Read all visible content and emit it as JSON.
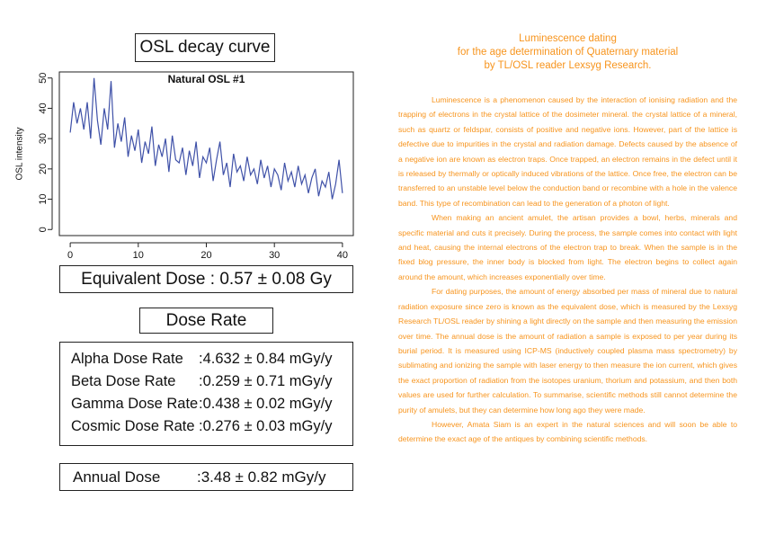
{
  "chart_box_title": "OSL decay curve",
  "chart_data": {
    "type": "line",
    "title": "Natural OSL #1",
    "y_label": "OSL intensity",
    "color": "#3f51a8",
    "x": [
      0,
      0.5,
      1,
      1.5,
      2,
      2.5,
      3,
      3.5,
      4,
      4.5,
      5,
      5.5,
      6,
      6.5,
      7,
      7.5,
      8,
      8.5,
      9,
      9.5,
      10,
      10.5,
      11,
      11.5,
      12,
      12.5,
      13,
      13.5,
      14,
      14.5,
      15,
      15.5,
      16,
      16.5,
      17,
      17.5,
      18,
      18.5,
      19,
      19.5,
      20,
      20.5,
      21,
      21.5,
      22,
      22.5,
      23,
      23.5,
      24,
      24.5,
      25,
      25.5,
      26,
      26.5,
      27,
      27.5,
      28,
      28.5,
      29,
      29.5,
      30,
      30.5,
      31,
      31.5,
      32,
      32.5,
      33,
      33.5,
      34,
      34.5,
      35,
      35.5,
      36,
      36.5,
      37,
      37.5,
      38,
      38.5,
      39,
      39.5,
      40
    ],
    "values": [
      32,
      42,
      35,
      40,
      33,
      42,
      30,
      50,
      36,
      28,
      40,
      33,
      49,
      27,
      35,
      29,
      37,
      24,
      31,
      26,
      33,
      22,
      29,
      25,
      34,
      21,
      28,
      24,
      30,
      19,
      31,
      23,
      22,
      27,
      18,
      26,
      21,
      29,
      17,
      24,
      22,
      27,
      16,
      23,
      29,
      18,
      22,
      14,
      25,
      19,
      21,
      16,
      24,
      18,
      20,
      15,
      23,
      17,
      21,
      14,
      20,
      18,
      13,
      22,
      16,
      19,
      14,
      21,
      15,
      18,
      12,
      17,
      20,
      11,
      16,
      14,
      19,
      10,
      15,
      23,
      12
    ],
    "xlim": [
      -1.6,
      41.6
    ],
    "ylim": [
      -2,
      52
    ],
    "xticks": [
      0,
      10,
      20,
      30,
      40
    ],
    "yticks": [
      0,
      10,
      20,
      30,
      40,
      50
    ]
  },
  "equivalent_dose": {
    "label": "Equivalent Dose",
    "value": ": 0.57 ±  0.08 Gy"
  },
  "dose_rate_title": "Dose Rate",
  "dose_rates": [
    {
      "label": "Alpha Dose Rate",
      "value": ":4.632 ±  0.84 mGy/y"
    },
    {
      "label": "Beta Dose Rate",
      "value": ":0.259 ±  0.71 mGy/y"
    },
    {
      "label": "Gamma Dose Rate",
      "value": ":0.438 ±  0.02 mGy/y"
    },
    {
      "label": "Cosmic Dose Rate",
      "value": ":0.276 ± 0.03  mGy/y"
    }
  ],
  "annual_dose": {
    "label": "Annual Dose",
    "value": ":3.48 ±  0.82 mGy/y"
  },
  "article": {
    "title": [
      "Luminescence dating",
      "for the age determination of Quaternary material",
      "by TL/OSL reader Lexsyg Research."
    ],
    "paragraphs": [
      "Luminescence is a phenomenon caused by the interaction of ionising radiation and the trapping of electrons in the crystal lattice of the dosimeter mineral. the crystal lattice of a mineral, such as quartz or feldspar, consists of positive and negative ions. However, part of the lattice is defective due to impurities in the crystal and radiation damage. Defects caused by the absence of a negative ion are known as electron traps. Once trapped, an electron remains in the defect until it is released by thermally or optically induced vibrations of the lattice. Once free, the electron can be transferred to an unstable level below the conduction band or recombine with a hole in the valence band. This type of recombination can lead to the generation of a photon of light.",
      "When making an ancient amulet, the artisan provides a bowl, herbs, minerals and specific material and cuts it precisely. During the process, the sample comes into contact with light and heat, causing the internal electrons of the electron trap to break. When the sample is in the fixed blog pressure, the inner body is blocked from light. The electron begins to collect again around the amount, which increases exponentially over time.",
      "For dating purposes, the amount of energy absorbed per mass of mineral due to natural radiation exposure since zero is known as the equivalent dose, which is measured by the Lexsyg Research TL/OSL reader by shining a light directly on the sample and then measuring the emission over time. The annual dose is the amount of radiation a sample is exposed to per year during its burial period. It is measured using ICP-MS (inductively coupled plasma mass spectrometry) by sublimating and ionizing the sample with laser energy to then measure the ion current, which gives the exact proportion of radiation from the isotopes uranium, thorium and potassium, and then both values are used for further calculation. To summarise, scientific methods still cannot determine the purity of amulets, but they can determine how long ago they were made.",
      "However, Amata Siam is an expert in the natural sciences and will soon be able to determine the exact age of the antiques by combining scientific methods."
    ]
  }
}
